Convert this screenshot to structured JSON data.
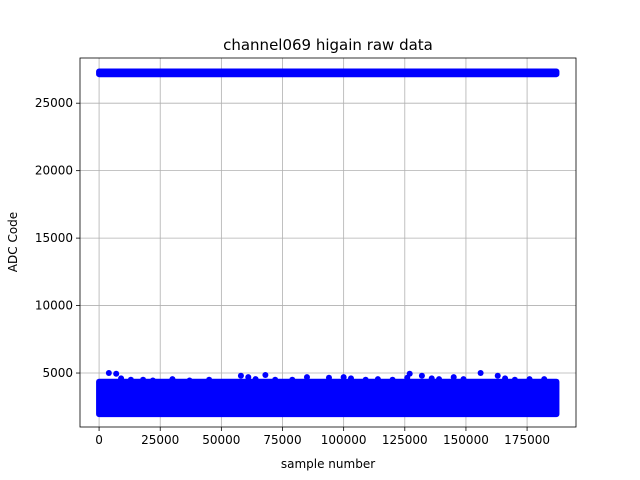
{
  "chart_data": {
    "type": "scatter",
    "title": "channel069 higain raw data",
    "xlabel": "sample number",
    "ylabel": "ADC Code",
    "xlim": [
      -7800,
      195000
    ],
    "ylim": [
      1000,
      28350
    ],
    "xticks": [
      0,
      25000,
      50000,
      75000,
      100000,
      125000,
      150000,
      175000
    ],
    "yticks": [
      5000,
      10000,
      15000,
      20000,
      25000
    ],
    "grid": true,
    "marker_color": "#0000ff",
    "series": [
      {
        "bands": [
          {
            "x_range": [
              0,
              187000
            ],
            "y_range": [
              27150,
              27350
            ]
          },
          {
            "x_range": [
              0,
              187000
            ],
            "y_range": [
              1950,
              4350
            ]
          }
        ],
        "outliers": [
          {
            "x": 4000,
            "y": 5000
          },
          {
            "x": 7000,
            "y": 4950
          },
          {
            "x": 9000,
            "y": 4600
          },
          {
            "x": 13000,
            "y": 4500
          },
          {
            "x": 18000,
            "y": 4500
          },
          {
            "x": 22000,
            "y": 4450
          },
          {
            "x": 30000,
            "y": 4550
          },
          {
            "x": 37000,
            "y": 4450
          },
          {
            "x": 45000,
            "y": 4500
          },
          {
            "x": 58000,
            "y": 4800
          },
          {
            "x": 61000,
            "y": 4700
          },
          {
            "x": 64000,
            "y": 4550
          },
          {
            "x": 68000,
            "y": 4850
          },
          {
            "x": 72000,
            "y": 4500
          },
          {
            "x": 79000,
            "y": 4500
          },
          {
            "x": 85000,
            "y": 4700
          },
          {
            "x": 94000,
            "y": 4650
          },
          {
            "x": 100000,
            "y": 4700
          },
          {
            "x": 103000,
            "y": 4600
          },
          {
            "x": 109000,
            "y": 4500
          },
          {
            "x": 114000,
            "y": 4550
          },
          {
            "x": 120000,
            "y": 4500
          },
          {
            "x": 126000,
            "y": 4650
          },
          {
            "x": 127000,
            "y": 4950
          },
          {
            "x": 132000,
            "y": 4800
          },
          {
            "x": 136000,
            "y": 4600
          },
          {
            "x": 139000,
            "y": 4550
          },
          {
            "x": 145000,
            "y": 4700
          },
          {
            "x": 149000,
            "y": 4550
          },
          {
            "x": 156000,
            "y": 5000
          },
          {
            "x": 163000,
            "y": 4800
          },
          {
            "x": 166000,
            "y": 4600
          },
          {
            "x": 170000,
            "y": 4500
          },
          {
            "x": 176000,
            "y": 4550
          },
          {
            "x": 182000,
            "y": 4550
          }
        ]
      }
    ]
  }
}
